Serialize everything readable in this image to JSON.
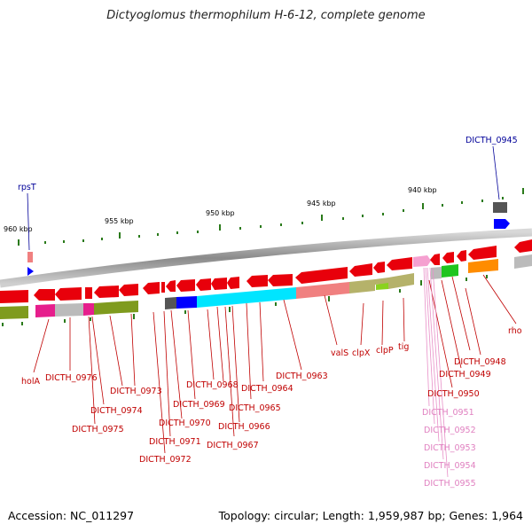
{
  "title": "Dictyoglomus thermophilum H-6-12, complete genome",
  "footer": {
    "accession": "Accession: NC_011297",
    "summary": "Topology: circular; Length: 1,959,987 bp; Genes: 1,964"
  },
  "scale_labels": [
    "960 kbp",
    "955 kbp",
    "950 kbp",
    "945 kbp",
    "940 kbp"
  ],
  "top_labels": [
    "rpsT",
    "DICTH_0945"
  ],
  "gene_labels": [
    "holA",
    "DICTH_0976",
    "DICTH_0974",
    "DICTH_0975",
    "DICTH_0973",
    "DICTH_0972",
    "DICTH_0971",
    "DICTH_0970",
    "DICTH_0969",
    "DICTH_0968",
    "DICTH_0967",
    "DICTH_0966",
    "DICTH_0965",
    "DICTH_0964",
    "DICTH_0963",
    "valS",
    "clpX",
    "clpP",
    "tig",
    "DICTH_0950",
    "DICTH_0949",
    "DICTH_0948",
    "rho",
    "DICTH_0951",
    "DICTH_0952",
    "DICTH_0953",
    "DICTH_0954",
    "DICTH_0955"
  ],
  "colors": {
    "red": "#e8000b",
    "pink": "#f08080",
    "olive": "#7f9b1e",
    "magenta": "#e61e8c",
    "cyan": "#00e5ff",
    "blue": "#0000ff",
    "khaki": "#b5b26a",
    "green": "#1fc51f",
    "orange": "#ff8c00",
    "gray": "#bbbbbb",
    "darkgray": "#555555",
    "label_red": "#c00000",
    "label_blue": "#000099",
    "label_pink": "#e080c0"
  }
}
